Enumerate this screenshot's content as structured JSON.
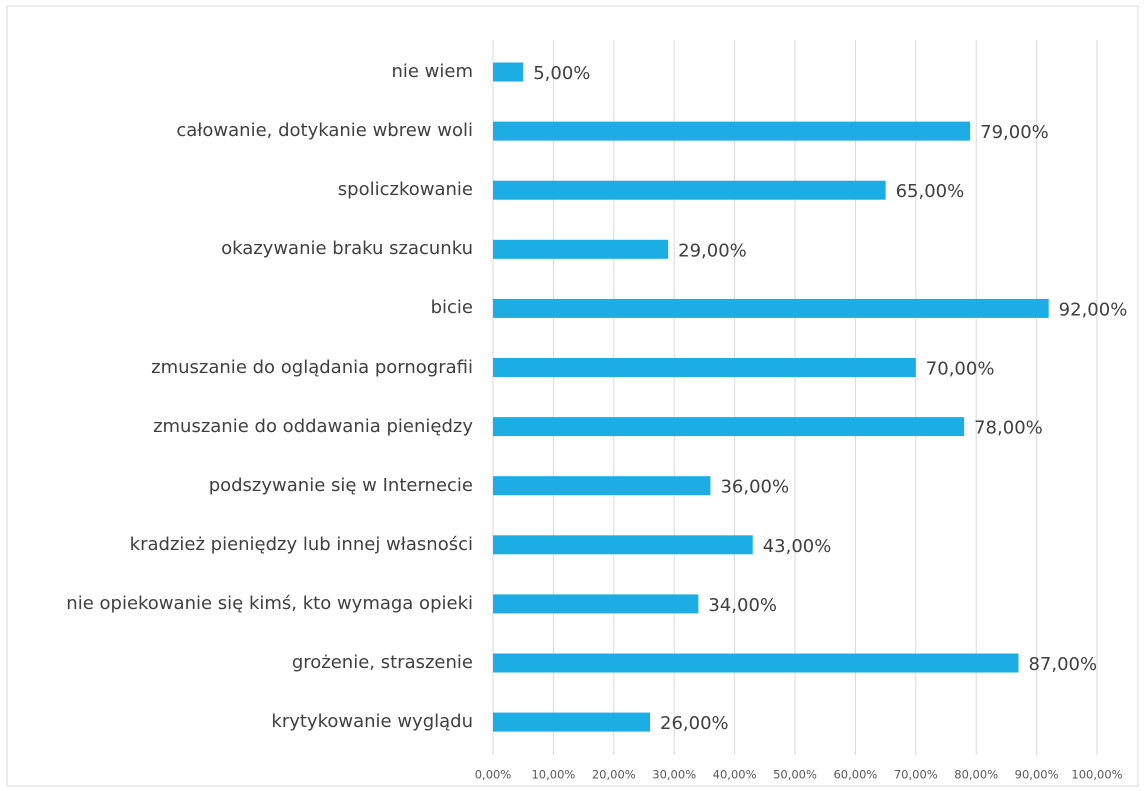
{
  "chart_data": {
    "type": "bar",
    "orientation": "horizontal",
    "categories": [
      "nie wiem",
      "całowanie, dotykanie wbrew woli",
      "spoliczkowanie",
      "okazywanie braku szacunku",
      "bicie",
      "zmuszanie do oglądania pornografii",
      "zmuszanie do oddawania pieniędzy",
      "podszywanie się w Internecie",
      "kradzież pieniędzy lub innej własności",
      "nie opiekowanie się kimś, kto wymaga opieki",
      "grożenie, straszenie",
      "krytykowanie wyglądu"
    ],
    "values": [
      5,
      79,
      65,
      29,
      92,
      70,
      78,
      36,
      43,
      34,
      87,
      26
    ],
    "value_labels": [
      "5,00%",
      "79,00%",
      "65,00%",
      "29,00%",
      "92,00%",
      "70,00%",
      "78,00%",
      "36,00%",
      "43,00%",
      "34,00%",
      "87,00%",
      "26,00%"
    ],
    "color": "#1cade4",
    "xlim": [
      0,
      100
    ],
    "xticks": [
      {
        "value": 0,
        "label": "0,00%"
      },
      {
        "value": 10,
        "label": "10,00%"
      },
      {
        "value": 20,
        "label": "20,00%"
      },
      {
        "value": 30,
        "label": "30,00%"
      },
      {
        "value": 40,
        "label": "40,00%"
      },
      {
        "value": 50,
        "label": "50,00%"
      },
      {
        "value": 60,
        "label": "60,00%"
      },
      {
        "value": 70,
        "label": "70,00%"
      },
      {
        "value": 80,
        "label": "80,00%"
      },
      {
        "value": 90,
        "label": "90,00%"
      },
      {
        "value": 100,
        "label": "100,00%"
      }
    ],
    "grid": true
  }
}
